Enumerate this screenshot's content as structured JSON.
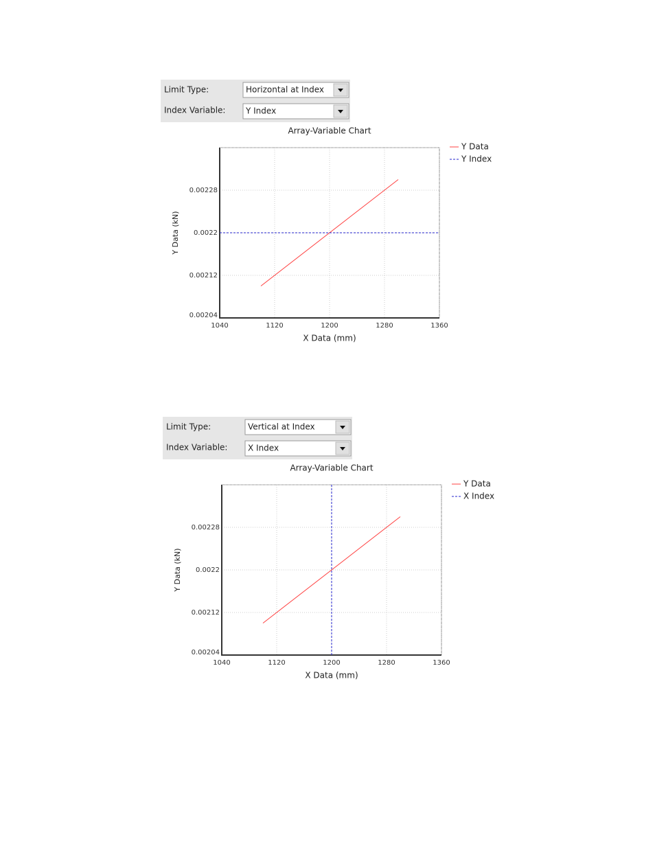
{
  "panels": [
    {
      "limit_type_label": "Limit Type:",
      "limit_type": "Horizontal at Index",
      "index_variable_label": "Index Variable:",
      "index_variable": "Y Index"
    },
    {
      "limit_type_label": "Limit Type:",
      "limit_type": "Vertical at Index",
      "index_variable_label": "Index Variable:",
      "index_variable": "X Index"
    }
  ],
  "chart_data": [
    {
      "type": "line",
      "title": "Array-Variable Chart",
      "x_label": "X Data (mm)",
      "y_label": "Y Data (kN)",
      "xlim": [
        1040,
        1360
      ],
      "xticks": [
        1040,
        1120,
        1200,
        1280,
        1360
      ],
      "ylim": [
        0.00204,
        0.00236
      ],
      "yticks": [
        0.00204,
        0.00212,
        0.0022,
        0.00228
      ],
      "grid": true,
      "series": [
        {
          "name": "Y Data",
          "color": "#ff4040",
          "style": "solid",
          "x": [
            1100,
            1300
          ],
          "values": [
            0.0021,
            0.0023
          ]
        },
        {
          "name": "Y Index",
          "color": "#2020cc",
          "style": "dashed",
          "x": [
            1040,
            1360
          ],
          "values": [
            0.0022,
            0.0022
          ]
        }
      ]
    },
    {
      "type": "line",
      "title": "Array-Variable Chart",
      "x_label": "X Data (mm)",
      "y_label": "Y Data (kN)",
      "xlim": [
        1040,
        1360
      ],
      "xticks": [
        1040,
        1120,
        1200,
        1280,
        1360
      ],
      "ylim": [
        0.00204,
        0.00236
      ],
      "yticks": [
        0.00204,
        0.00212,
        0.0022,
        0.00228
      ],
      "grid": true,
      "series": [
        {
          "name": "Y Data",
          "color": "#ff4040",
          "style": "solid",
          "x": [
            1100,
            1300
          ],
          "values": [
            0.0021,
            0.0023
          ]
        },
        {
          "name": "X Index",
          "color": "#2020cc",
          "style": "dashed",
          "x": [
            1200,
            1200
          ],
          "values": [
            0.00204,
            0.00236
          ]
        }
      ]
    }
  ]
}
